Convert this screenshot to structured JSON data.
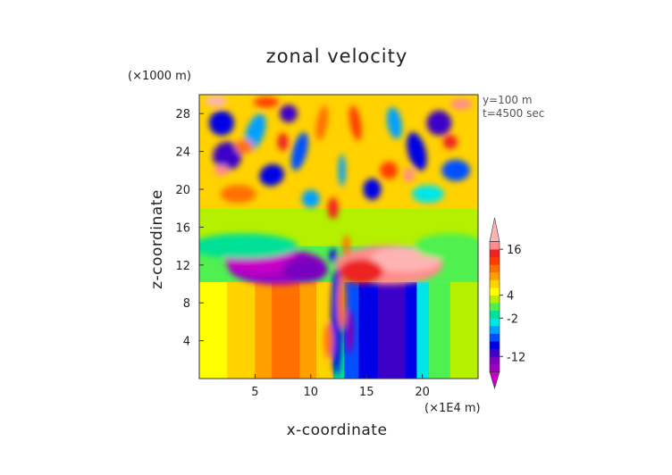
{
  "chart_data": {
    "type": "heatmap",
    "title": "zonal velocity",
    "xlabel": "x-coordinate",
    "ylabel": "z-coordinate",
    "x_unit": "(×1E4 m)",
    "y_unit": "(×1000 m)",
    "xlim": [
      0,
      25
    ],
    "ylim": [
      0,
      30
    ],
    "x_ticks": [
      "5",
      "10",
      "15",
      "20"
    ],
    "x_tick_values": [
      5,
      10,
      15,
      20
    ],
    "y_ticks": [
      "4",
      "8",
      "12",
      "16",
      "20",
      "24",
      "28"
    ],
    "y_tick_values": [
      4,
      8,
      12,
      16,
      20,
      24,
      28
    ],
    "annotations": [
      "y=100 m",
      "t=4500 sec"
    ],
    "colorbar": {
      "tick_labels": [
        "16",
        "4",
        "-2",
        "-12"
      ],
      "tick_values": [
        16,
        4,
        -2,
        -12
      ],
      "levels": [
        -18,
        -16,
        -14,
        -12,
        -10,
        -8,
        -6,
        -4,
        -2,
        0,
        2,
        4,
        6,
        8,
        10,
        12,
        14,
        16,
        18
      ],
      "colors": [
        "#c800c8",
        "#a000c0",
        "#7a00c0",
        "#3c00c8",
        "#0000e6",
        "#0050ff",
        "#00a0ff",
        "#00e6e6",
        "#00e096",
        "#50f050",
        "#b4f000",
        "#ffff00",
        "#ffd200",
        "#ffa000",
        "#ff7000",
        "#ff3c00",
        "#ee2020",
        "#ff8c8c",
        "#ffb4b4"
      ]
    }
  }
}
